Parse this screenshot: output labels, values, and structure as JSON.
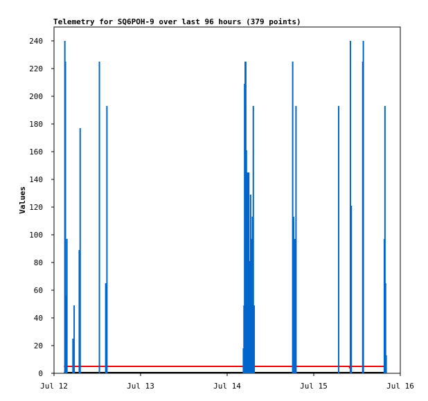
{
  "chart_data": {
    "type": "line",
    "title": "Telemetry for SQ6POH-9 over last 96 hours (379 points)",
    "ylabel": "Values",
    "xlabel": "",
    "xlim": [
      "2024-07-12T00:00",
      "2024-07-16T00:00"
    ],
    "ylim": [
      0,
      250
    ],
    "y_ticks": [
      0,
      20,
      40,
      60,
      80,
      100,
      120,
      140,
      160,
      180,
      200,
      220,
      240
    ],
    "x_ticks": [
      {
        "t": "2024-07-12T00:00",
        "label": "Jul 12"
      },
      {
        "t": "2024-07-13T00:00",
        "label": "Jul 13"
      },
      {
        "t": "2024-07-14T00:00",
        "label": "Jul 14"
      },
      {
        "t": "2024-07-15T00:00",
        "label": "Jul 15"
      },
      {
        "t": "2024-07-16T00:00",
        "label": "Jul 16"
      }
    ],
    "grid": false,
    "legend": "none",
    "series": [
      {
        "color": "#0066cc",
        "spikes": [
          {
            "t": "2024-07-12T03:00",
            "v": 240
          },
          {
            "t": "2024-07-12T03:10",
            "v": 225
          },
          {
            "t": "2024-07-12T03:20",
            "v": 56
          },
          {
            "t": "2024-07-12T03:35",
            "v": 97
          },
          {
            "t": "2024-07-12T05:15",
            "v": 25
          },
          {
            "t": "2024-07-12T05:35",
            "v": 49
          },
          {
            "t": "2024-07-12T07:00",
            "v": 89
          },
          {
            "t": "2024-07-12T07:15",
            "v": 177
          },
          {
            "t": "2024-07-12T12:35",
            "v": 225
          },
          {
            "t": "2024-07-12T14:20",
            "v": 65
          },
          {
            "t": "2024-07-12T14:40",
            "v": 193
          },
          {
            "t": "2024-07-14T04:30",
            "v": 18
          },
          {
            "t": "2024-07-14T04:40",
            "v": 49
          },
          {
            "t": "2024-07-14T04:50",
            "v": 209
          },
          {
            "t": "2024-07-14T05:00",
            "v": 225
          },
          {
            "t": "2024-07-14T05:10",
            "v": 225
          },
          {
            "t": "2024-07-14T05:20",
            "v": 161
          },
          {
            "t": "2024-07-14T05:30",
            "v": 129
          },
          {
            "t": "2024-07-14T05:40",
            "v": 145
          },
          {
            "t": "2024-07-14T05:50",
            "v": 137
          },
          {
            "t": "2024-07-14T06:00",
            "v": 145
          },
          {
            "t": "2024-07-14T06:15",
            "v": 81
          },
          {
            "t": "2024-07-14T06:30",
            "v": 129
          },
          {
            "t": "2024-07-14T06:45",
            "v": 97
          },
          {
            "t": "2024-07-14T07:00",
            "v": 113
          },
          {
            "t": "2024-07-14T07:15",
            "v": 193
          },
          {
            "t": "2024-07-14T07:30",
            "v": 49
          },
          {
            "t": "2024-07-14T18:10",
            "v": 225
          },
          {
            "t": "2024-07-14T18:25",
            "v": 113
          },
          {
            "t": "2024-07-14T18:45",
            "v": 97
          },
          {
            "t": "2024-07-14T19:05",
            "v": 193
          },
          {
            "t": "2024-07-15T06:55",
            "v": 193
          },
          {
            "t": "2024-07-15T10:10",
            "v": 240
          },
          {
            "t": "2024-07-15T10:25",
            "v": 121
          },
          {
            "t": "2024-07-15T13:35",
            "v": 225
          },
          {
            "t": "2024-07-15T13:45",
            "v": 240
          },
          {
            "t": "2024-07-15T19:35",
            "v": 97
          },
          {
            "t": "2024-07-15T19:45",
            "v": 193
          },
          {
            "t": "2024-07-15T19:55",
            "v": 65
          },
          {
            "t": "2024-07-15T20:05",
            "v": 13
          }
        ],
        "span": [
          "2024-07-12T02:45",
          "2024-07-15T20:15"
        ]
      },
      {
        "color": "#e00000",
        "constant": 5,
        "span": [
          "2024-07-12T02:45",
          "2024-07-15T20:15"
        ],
        "dip": {
          "from": "2024-07-15T09:45",
          "to": "2024-07-15T10:00",
          "v": 4
        }
      },
      {
        "color": "#000000",
        "constant": 0,
        "span": [
          "2024-07-12T02:45",
          "2024-07-15T20:15"
        ]
      }
    ]
  }
}
